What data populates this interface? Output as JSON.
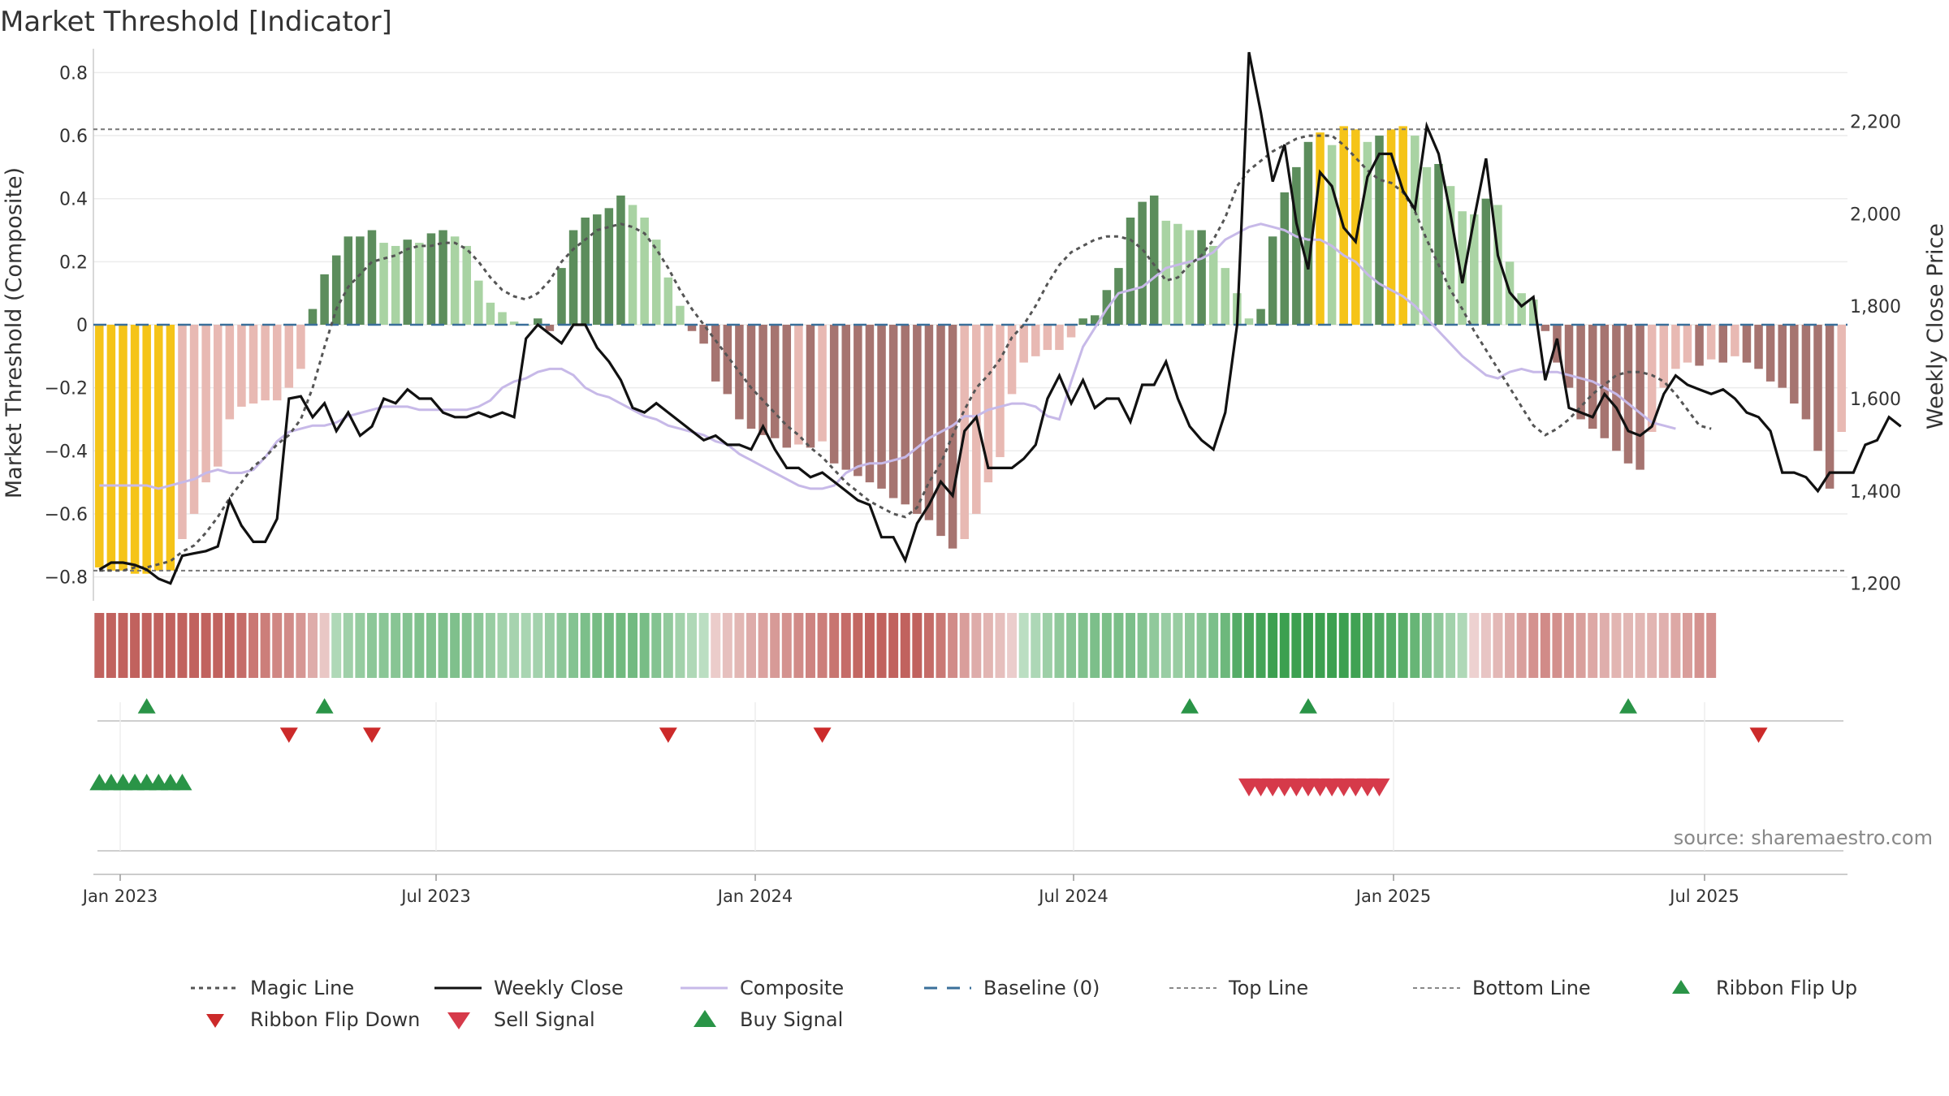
{
  "chart_data": {
    "type": "bar",
    "title": "Market Threshold [Indicator]",
    "ylabel": "Market Threshold (Composite)",
    "y2label": "Weekly Close Price",
    "ylim": [
      -0.85,
      0.85
    ],
    "y2lim": [
      1180,
      2340
    ],
    "yticks": [
      "0.8",
      "0.6",
      "0.4",
      "0.2",
      "0",
      "−0.2",
      "−0.4",
      "−0.6",
      "−0.8"
    ],
    "y2ticks": [
      "2,200",
      "2,000",
      "1,800",
      "1,600",
      "1,400",
      "1,200"
    ],
    "xtick_labels": [
      "Jan 2023",
      "Jul 2023",
      "Jan 2024",
      "Jul 2024",
      "Jan 2025",
      "Jul 2025"
    ],
    "top_line": 0.62,
    "bottom_line": -0.78,
    "baseline": 0,
    "source": "source: sharemaestro.com",
    "composite_bars": [
      -0.77,
      -0.78,
      -0.78,
      -0.79,
      -0.79,
      -0.78,
      -0.78,
      -0.68,
      -0.6,
      -0.5,
      -0.45,
      -0.3,
      -0.26,
      -0.25,
      -0.24,
      -0.24,
      -0.2,
      -0.14,
      0.05,
      0.16,
      0.22,
      0.28,
      0.28,
      0.3,
      0.26,
      0.25,
      0.27,
      0.26,
      0.29,
      0.3,
      0.28,
      0.25,
      0.14,
      0.07,
      0.04,
      0.01,
      0.0,
      0.02,
      -0.02,
      0.18,
      0.3,
      0.34,
      0.35,
      0.37,
      0.41,
      0.38,
      0.34,
      0.27,
      0.15,
      0.06,
      -0.02,
      -0.06,
      -0.18,
      -0.22,
      -0.3,
      -0.33,
      -0.35,
      -0.36,
      -0.39,
      -0.38,
      -0.39,
      -0.37,
      -0.44,
      -0.46,
      -0.48,
      -0.5,
      -0.52,
      -0.55,
      -0.57,
      -0.6,
      -0.62,
      -0.67,
      -0.71,
      -0.68,
      -0.6,
      -0.5,
      -0.42,
      -0.22,
      -0.12,
      -0.1,
      -0.08,
      -0.08,
      -0.04,
      0.02,
      0.03,
      0.11,
      0.18,
      0.34,
      0.39,
      0.41,
      0.33,
      0.32,
      0.3,
      0.3,
      0.25,
      0.18,
      0.1,
      0.02,
      0.05,
      0.28,
      0.42,
      0.5,
      0.58,
      0.61,
      0.57,
      0.63,
      0.62,
      0.58,
      0.6,
      0.62,
      0.63,
      0.6,
      0.5,
      0.51,
      0.44,
      0.36,
      0.35,
      0.4,
      0.38,
      0.2,
      0.1,
      0.08,
      -0.02,
      -0.12,
      -0.2,
      -0.3,
      -0.33,
      -0.36,
      -0.4,
      -0.44,
      -0.46,
      -0.34,
      -0.2,
      -0.14,
      -0.12,
      -0.13,
      -0.11,
      -0.12,
      -0.1,
      -0.12,
      -0.14,
      -0.18,
      -0.2,
      -0.25,
      -0.3,
      -0.4,
      -0.52,
      -0.34
    ],
    "composite_line": [
      -0.51,
      -0.51,
      -0.51,
      -0.51,
      -0.51,
      -0.52,
      -0.51,
      -0.5,
      -0.49,
      -0.47,
      -0.46,
      -0.47,
      -0.47,
      -0.46,
      -0.42,
      -0.37,
      -0.34,
      -0.33,
      -0.32,
      -0.32,
      -0.31,
      -0.29,
      -0.28,
      -0.27,
      -0.26,
      -0.26,
      -0.26,
      -0.27,
      -0.27,
      -0.27,
      -0.27,
      -0.27,
      -0.26,
      -0.24,
      -0.2,
      -0.18,
      -0.17,
      -0.15,
      -0.14,
      -0.14,
      -0.16,
      -0.2,
      -0.22,
      -0.23,
      -0.25,
      -0.27,
      -0.29,
      -0.3,
      -0.32,
      -0.33,
      -0.34,
      -0.35,
      -0.37,
      -0.38,
      -0.41,
      -0.43,
      -0.45,
      -0.47,
      -0.49,
      -0.51,
      -0.52,
      -0.52,
      -0.51,
      -0.47,
      -0.45,
      -0.44,
      -0.44,
      -0.43,
      -0.42,
      -0.39,
      -0.36,
      -0.34,
      -0.32,
      -0.29,
      -0.29,
      -0.27,
      -0.26,
      -0.25,
      -0.25,
      -0.26,
      -0.29,
      -0.3,
      -0.18,
      -0.07,
      -0.01,
      0.05,
      0.1,
      0.11,
      0.12,
      0.15,
      0.18,
      0.19,
      0.2,
      0.21,
      0.23,
      0.27,
      0.29,
      0.31,
      0.32,
      0.31,
      0.3,
      0.28,
      0.27,
      0.27,
      0.25,
      0.22,
      0.2,
      0.16,
      0.13,
      0.11,
      0.09,
      0.06,
      0.02,
      -0.02,
      -0.06,
      -0.1,
      -0.13,
      -0.16,
      -0.17,
      -0.15,
      -0.14,
      -0.15,
      -0.15,
      -0.15,
      -0.16,
      -0.17,
      -0.18,
      -0.2,
      -0.22,
      -0.25,
      -0.28,
      -0.31,
      -0.32,
      -0.33
    ],
    "magic_line": [
      -0.78,
      -0.78,
      -0.78,
      -0.77,
      -0.77,
      -0.76,
      -0.75,
      -0.72,
      -0.7,
      -0.66,
      -0.61,
      -0.55,
      -0.5,
      -0.45,
      -0.42,
      -0.38,
      -0.35,
      -0.3,
      -0.2,
      -0.07,
      0.05,
      0.12,
      0.16,
      0.2,
      0.21,
      0.22,
      0.24,
      0.25,
      0.25,
      0.26,
      0.26,
      0.24,
      0.2,
      0.15,
      0.11,
      0.09,
      0.08,
      0.1,
      0.14,
      0.2,
      0.24,
      0.27,
      0.3,
      0.31,
      0.32,
      0.31,
      0.29,
      0.24,
      0.18,
      0.11,
      0.05,
      0.0,
      -0.05,
      -0.1,
      -0.15,
      -0.2,
      -0.24,
      -0.28,
      -0.32,
      -0.35,
      -0.39,
      -0.42,
      -0.46,
      -0.5,
      -0.53,
      -0.56,
      -0.58,
      -0.6,
      -0.61,
      -0.58,
      -0.5,
      -0.44,
      -0.35,
      -0.27,
      -0.2,
      -0.16,
      -0.11,
      -0.04,
      0.0,
      0.06,
      0.13,
      0.19,
      0.23,
      0.25,
      0.27,
      0.28,
      0.28,
      0.27,
      0.24,
      0.19,
      0.14,
      0.15,
      0.19,
      0.22,
      0.27,
      0.34,
      0.44,
      0.49,
      0.52,
      0.55,
      0.57,
      0.59,
      0.6,
      0.6,
      0.6,
      0.57,
      0.53,
      0.49,
      0.46,
      0.45,
      0.42,
      0.36,
      0.27,
      0.19,
      0.11,
      0.05,
      -0.02,
      -0.08,
      -0.14,
      -0.2,
      -0.26,
      -0.32,
      -0.35,
      -0.33,
      -0.3,
      -0.26,
      -0.22,
      -0.19,
      -0.16,
      -0.15,
      -0.15,
      -0.16,
      -0.18,
      -0.22,
      -0.27,
      -0.32,
      -0.33
    ],
    "weekly_close": [
      1230,
      1245,
      1245,
      1240,
      1230,
      1210,
      1200,
      1260,
      1265,
      1270,
      1280,
      1380,
      1325,
      1290,
      1290,
      1340,
      1600,
      1605,
      1560,
      1590,
      1530,
      1570,
      1520,
      1540,
      1600,
      1590,
      1620,
      1600,
      1600,
      1570,
      1560,
      1560,
      1570,
      1560,
      1570,
      1560,
      1730,
      1760,
      1740,
      1720,
      1760,
      1760,
      1710,
      1680,
      1640,
      1580,
      1570,
      1590,
      1570,
      1550,
      1530,
      1510,
      1520,
      1500,
      1500,
      1490,
      1540,
      1490,
      1450,
      1450,
      1430,
      1440,
      1420,
      1400,
      1380,
      1370,
      1300,
      1300,
      1250,
      1330,
      1370,
      1420,
      1390,
      1530,
      1560,
      1450,
      1450,
      1450,
      1470,
      1500,
      1600,
      1650,
      1590,
      1640,
      1580,
      1600,
      1600,
      1550,
      1630,
      1630,
      1680,
      1600,
      1540,
      1510,
      1490,
      1570,
      1760,
      2350,
      2220,
      2070,
      2150,
      1980,
      1880,
      2090,
      2060,
      1970,
      1940,
      2080,
      2130,
      2130,
      2050,
      2010,
      2190,
      2130,
      2000,
      1850,
      1990,
      2120,
      1910,
      1830,
      1800,
      1820,
      1640,
      1730,
      1580,
      1570,
      1560,
      1610,
      1580,
      1530,
      1520,
      1540,
      1610,
      1650,
      1630,
      1620,
      1610,
      1620,
      1600,
      1570,
      1560,
      1530,
      1440,
      1440,
      1430,
      1400,
      1440,
      1440,
      1440,
      1500,
      1510,
      1560,
      1540
    ],
    "ribbon_flip_up_weeks": [
      4,
      19,
      92,
      102,
      129
    ],
    "ribbon_flip_down_weeks": [
      16,
      23,
      48,
      61,
      140
    ],
    "buy_signal_weeks": [
      0,
      1,
      2,
      3,
      4,
      5,
      6,
      7
    ],
    "sell_signal_weeks": [
      97,
      98,
      99,
      100,
      101,
      102,
      103,
      104,
      105,
      106,
      107,
      108
    ],
    "legend": [
      "Magic Line",
      "Weekly Close",
      "Composite",
      "Baseline (0)",
      "Top Line",
      "Bottom Line",
      "Ribbon Flip Up",
      "Ribbon Flip Down",
      "Sell Signal",
      "Buy Signal"
    ],
    "colors": {
      "strong_up": "#5c8d5c",
      "weak_up": "#a9d3a3",
      "strong_down": "#a67470",
      "weak_down": "#e8b9b3",
      "extreme": "#f5c418",
      "composite_line": "#c7b9e8",
      "weekly_close": "#111111",
      "magic_line": "#555555",
      "baseline": "#3a6f9a",
      "flip_up": "#2a9447",
      "flip_down": "#cc2a2a",
      "buy": "#2a9447",
      "sell": "#d63a4a"
    }
  }
}
